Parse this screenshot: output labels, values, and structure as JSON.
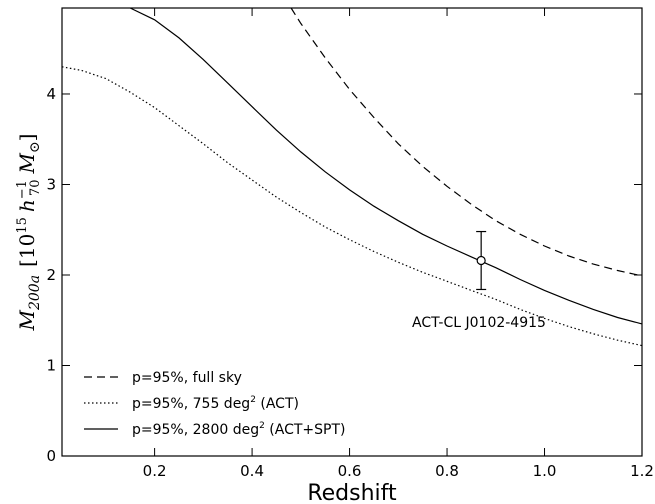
{
  "chart_data": {
    "type": "line",
    "xlabel": "Redshift",
    "ylabel": {
      "M": "M",
      "sub": "200a",
      "open": "[10",
      "exp": "15",
      "h": "h",
      "hsup": "−1",
      "hsub": "70",
      "M2": "M",
      "sun": "⊙",
      "close": "]"
    },
    "xlim": [
      0.01,
      1.2
    ],
    "ylim": [
      0,
      4.95
    ],
    "xticks": [
      0.2,
      0.4,
      0.6,
      0.8,
      1.0,
      1.2
    ],
    "xtick_labels": [
      "0.2",
      "0.4",
      "0.6",
      "0.8",
      "1.0",
      "1.2"
    ],
    "yticks": [
      0,
      1,
      2,
      3,
      4
    ],
    "ytick_labels": [
      "0",
      "1",
      "2",
      "3",
      "4"
    ],
    "series": [
      {
        "name": "p=95%, full sky",
        "style": "dashed",
        "x": [
          0.48,
          0.5,
          0.55,
          0.6,
          0.65,
          0.7,
          0.75,
          0.8,
          0.85,
          0.9,
          0.95,
          1.0,
          1.05,
          1.1,
          1.15,
          1.2
        ],
        "y": [
          4.95,
          4.78,
          4.4,
          4.05,
          3.74,
          3.45,
          3.2,
          2.98,
          2.78,
          2.6,
          2.45,
          2.32,
          2.21,
          2.12,
          2.05,
          1.99
        ]
      },
      {
        "name": "p=95%, 755 deg",
        "name_sup": "2",
        "name_suffix": " (ACT)",
        "style": "dotted",
        "x": [
          0.01,
          0.05,
          0.1,
          0.15,
          0.2,
          0.25,
          0.3,
          0.35,
          0.4,
          0.45,
          0.5,
          0.55,
          0.6,
          0.65,
          0.7,
          0.75,
          0.8,
          0.85,
          0.9,
          0.95,
          1.0,
          1.05,
          1.1,
          1.15,
          1.2
        ],
        "y": [
          4.3,
          4.26,
          4.17,
          4.02,
          3.85,
          3.65,
          3.45,
          3.24,
          3.05,
          2.86,
          2.69,
          2.53,
          2.39,
          2.26,
          2.14,
          2.03,
          1.93,
          1.83,
          1.73,
          1.62,
          1.52,
          1.43,
          1.35,
          1.28,
          1.22
        ]
      },
      {
        "name": "p=95%, 2800 deg",
        "name_sup": "2",
        "name_suffix": " (ACT+SPT)",
        "style": "solid",
        "x": [
          0.15,
          0.2,
          0.25,
          0.3,
          0.35,
          0.4,
          0.45,
          0.5,
          0.55,
          0.6,
          0.65,
          0.7,
          0.75,
          0.8,
          0.85,
          0.9,
          0.95,
          1.0,
          1.05,
          1.1,
          1.15,
          1.2
        ],
        "y": [
          4.95,
          4.82,
          4.62,
          4.38,
          4.12,
          3.86,
          3.6,
          3.36,
          3.14,
          2.94,
          2.76,
          2.6,
          2.45,
          2.32,
          2.2,
          2.08,
          1.95,
          1.83,
          1.72,
          1.62,
          1.53,
          1.46
        ]
      }
    ],
    "point": {
      "label": "ACT-CL J0102-4915",
      "x": 0.87,
      "y": 2.16,
      "yerr_low": 1.84,
      "yerr_high": 2.48
    },
    "legend_position": "bottom-left",
    "grid": false
  }
}
